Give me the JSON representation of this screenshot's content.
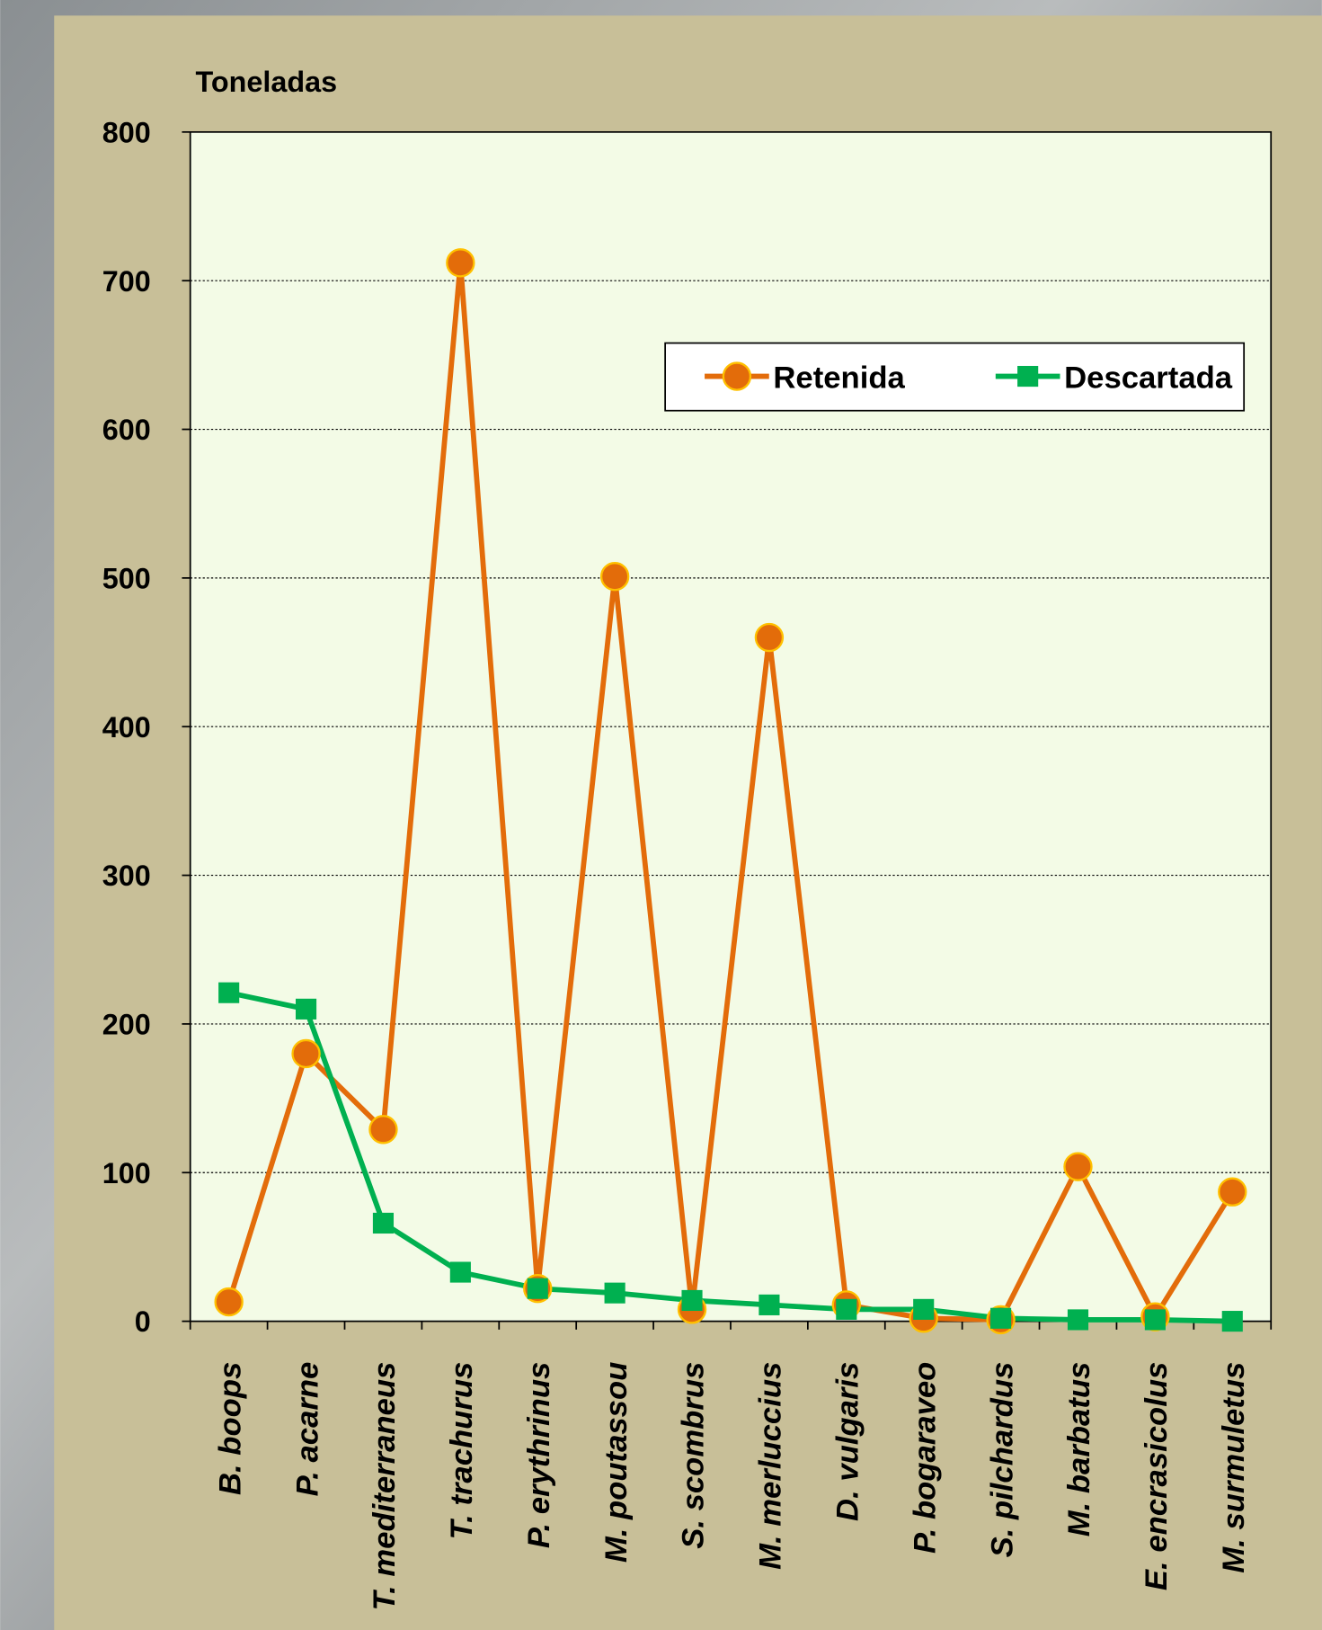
{
  "chart_data": {
    "type": "line",
    "y_axis_title": "Toneladas",
    "categories": [
      "B. boops",
      "P. acarne",
      "T. mediterraneus",
      "T. trachurus",
      "P. erythrinus",
      "M. poutassou",
      "S. scombrus",
      "M. merluccius",
      "D. vulgaris",
      "P. bogaraveo",
      "S. pilchardus",
      "M. barbatus",
      "E. encrasicolus",
      "M. surmuletus"
    ],
    "series": [
      {
        "name": "Retenida",
        "color": "#e36c0a",
        "marker": "circle",
        "values": [
          13,
          180,
          129,
          712,
          22,
          501,
          8,
          460,
          11,
          2,
          1,
          104,
          3,
          87
        ]
      },
      {
        "name": "Descartada",
        "color": "#00b050",
        "marker": "square",
        "values": [
          221,
          210,
          66,
          33,
          22,
          19,
          14,
          11,
          8,
          8,
          2,
          1,
          1,
          0
        ]
      }
    ],
    "ylim": [
      0,
      800
    ],
    "yticks": [
      0,
      100,
      200,
      300,
      400,
      500,
      600,
      700,
      800
    ],
    "grid": true,
    "legend": "upper right"
  }
}
